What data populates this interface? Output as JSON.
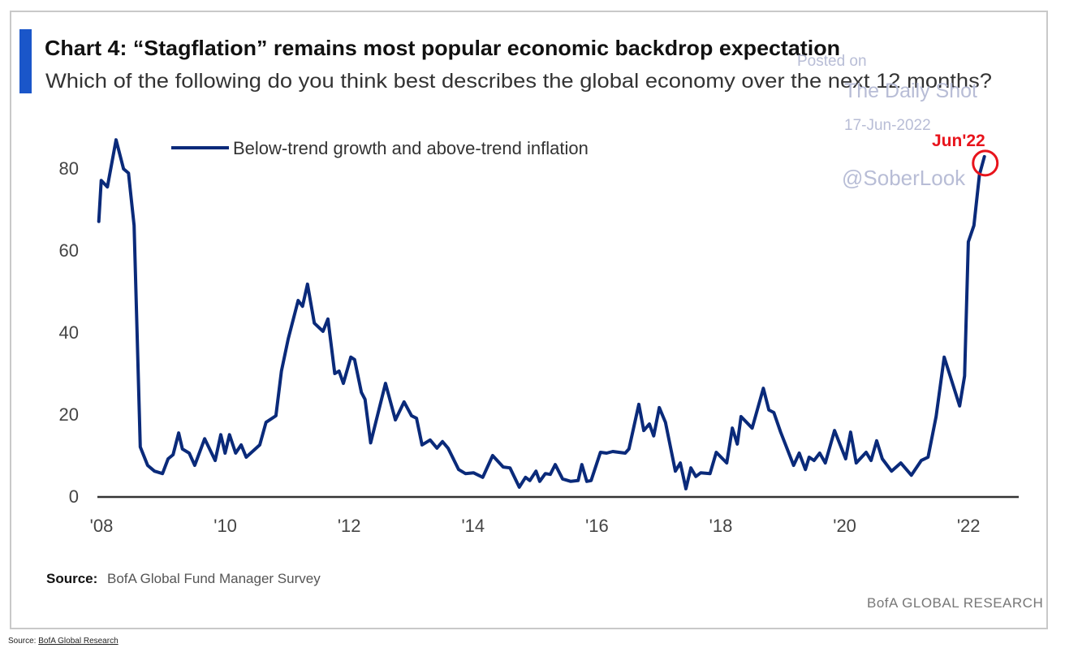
{
  "chart_data": {
    "type": "line",
    "title": "Chart 4: “Stagflation” remains most popular economic backdrop expectation",
    "subtitle": "Which of the following do you think best describes the global economy over the next 12 months?",
    "xlabel": "",
    "ylabel": "",
    "xlim": [
      2007.91,
      2022.78
    ],
    "ylim": [
      0,
      87
    ],
    "grid": false,
    "legend_position": "top-left",
    "x_ticks": [
      {
        "value": 2008,
        "label": "'08"
      },
      {
        "value": 2010,
        "label": "'10"
      },
      {
        "value": 2012,
        "label": "'12"
      },
      {
        "value": 2014,
        "label": "'14"
      },
      {
        "value": 2016,
        "label": "'16"
      },
      {
        "value": 2018,
        "label": "'18"
      },
      {
        "value": 2020,
        "label": "'20"
      },
      {
        "value": 2022,
        "label": "'22"
      }
    ],
    "y_ticks": [
      {
        "value": 0,
        "label": "0"
      },
      {
        "value": 20,
        "label": "20"
      },
      {
        "value": 40,
        "label": "40"
      },
      {
        "value": 60,
        "label": "60"
      },
      {
        "value": 80,
        "label": "80"
      }
    ],
    "series": [
      {
        "name": "Below-trend growth and above-trend inflation",
        "color": "#0a2a7a",
        "x": [
          2007.93,
          2007.97,
          2008.07,
          2008.21,
          2008.33,
          2008.41,
          2008.5,
          2008.6,
          2008.72,
          2008.83,
          2008.96,
          2009.05,
          2009.13,
          2009.22,
          2009.28,
          2009.39,
          2009.48,
          2009.64,
          2009.81,
          2009.9,
          2009.97,
          2010.04,
          2010.14,
          2010.23,
          2010.31,
          2010.53,
          2010.63,
          2010.79,
          2010.88,
          2010.99,
          2011.15,
          2011.22,
          2011.3,
          2011.41,
          2011.55,
          2011.63,
          2011.74,
          2011.81,
          2011.88,
          2012.0,
          2012.06,
          2012.17,
          2012.23,
          2012.32,
          2012.56,
          2012.72,
          2012.86,
          2012.98,
          2013.06,
          2013.15,
          2013.28,
          2013.39,
          2013.48,
          2013.57,
          2013.74,
          2013.85,
          2013.98,
          2014.13,
          2014.29,
          2014.46,
          2014.57,
          2014.72,
          2014.82,
          2014.89,
          2014.99,
          2015.05,
          2015.14,
          2015.22,
          2015.3,
          2015.42,
          2015.55,
          2015.67,
          2015.73,
          2015.81,
          2015.88,
          2016.03,
          2016.13,
          2016.23,
          2016.43,
          2016.49,
          2016.65,
          2016.73,
          2016.82,
          2016.89,
          2016.98,
          2017.08,
          2017.24,
          2017.32,
          2017.41,
          2017.49,
          2017.57,
          2017.65,
          2017.8,
          2017.9,
          2018.07,
          2018.16,
          2018.24,
          2018.3,
          2018.48,
          2018.66,
          2018.75,
          2018.83,
          2018.94,
          2019.15,
          2019.24,
          2019.34,
          2019.4,
          2019.48,
          2019.57,
          2019.66,
          2019.81,
          2019.99,
          2020.07,
          2020.16,
          2020.32,
          2020.4,
          2020.49,
          2020.58,
          2020.73,
          2020.88,
          2021.05,
          2021.21,
          2021.32,
          2021.45,
          2021.58,
          2021.83,
          2021.91,
          2021.97,
          2022.06,
          2022.15,
          2022.23
        ],
        "values": [
          67,
          77,
          75.4,
          86.9,
          79.8,
          78.8,
          66,
          12,
          7.5,
          6.1,
          5.5,
          9.1,
          10.1,
          15.4,
          11.5,
          10.5,
          7.5,
          14,
          8.7,
          15,
          10.5,
          15,
          10.5,
          12.5,
          9.5,
          12.5,
          18,
          19.6,
          30.5,
          38.4,
          47.7,
          46.3,
          51.7,
          42.2,
          40.2,
          43.2,
          29.9,
          30.5,
          27.5,
          33.9,
          33.3,
          25.3,
          23.6,
          13,
          27.5,
          18.6,
          23,
          19.6,
          19,
          12.5,
          13.7,
          11.7,
          13.3,
          11.7,
          6.5,
          5.5,
          5.7,
          4.6,
          9.9,
          7.1,
          6.9,
          2.2,
          4.6,
          3.8,
          6.1,
          3.6,
          5.5,
          5.3,
          7.7,
          4.2,
          3.6,
          3.8,
          7.7,
          3.6,
          3.8,
          10.7,
          10.5,
          10.9,
          10.5,
          11.5,
          22.4,
          16,
          17.6,
          14.7,
          21.6,
          18,
          6.1,
          8.1,
          1.8,
          6.9,
          4.8,
          5.7,
          5.5,
          10.7,
          8.1,
          16.6,
          12.7,
          19.4,
          16.6,
          26.3,
          21,
          20.4,
          15.6,
          7.5,
          10.5,
          6.5,
          9.5,
          8.7,
          10.5,
          8.1,
          16,
          9.1,
          15.6,
          8.1,
          10.7,
          8.7,
          13.5,
          9.1,
          6.1,
          8.1,
          5.1,
          8.7,
          9.5,
          19.4,
          33.9,
          22,
          29.3,
          62,
          66,
          78.4,
          82.8
        ]
      }
    ],
    "annotations": [
      {
        "text": "Jun'22",
        "color": "#e8141c",
        "marker": "circle-around-last-point"
      }
    ],
    "watermark": {
      "line1": "Posted on",
      "line2": "The Daily Shot",
      "line3": "17-Jun-2022",
      "line4": "@SoberLook"
    },
    "source_label": "Source:",
    "source_text": "BofA Global Fund Manager Survey",
    "brand": "BofA GLOBAL RESEARCH",
    "accent_color": "#1a56c9"
  },
  "footer": {
    "label": "Source:",
    "link": "BofA Global Research"
  }
}
